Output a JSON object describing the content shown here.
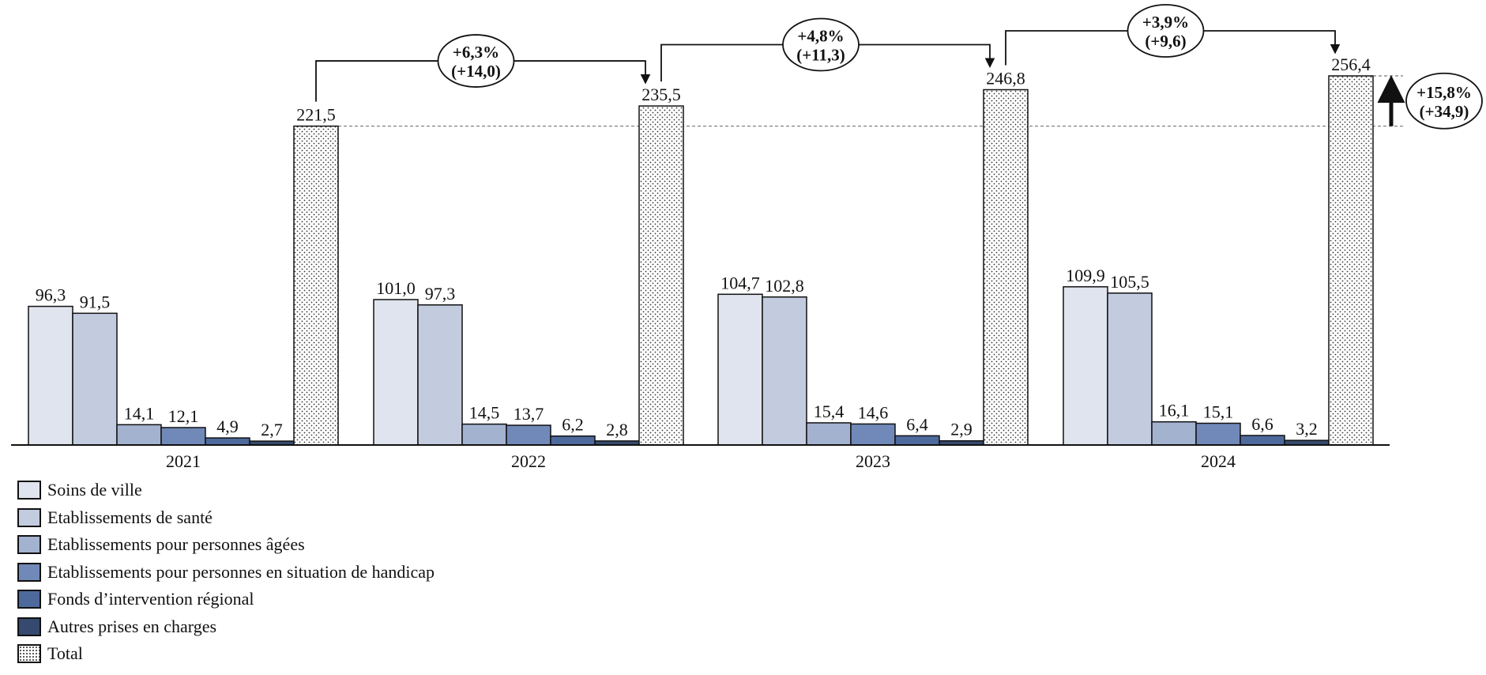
{
  "chart_data": {
    "type": "bar",
    "categories": [
      "2021",
      "2022",
      "2023",
      "2024"
    ],
    "series": [
      {
        "name": "Soins de ville",
        "color": "#dfe4ee",
        "values": [
          96.3,
          101.0,
          104.7,
          109.9
        ],
        "labels": [
          "96,3",
          "101,0",
          "104,7",
          "109,9"
        ]
      },
      {
        "name": "Etablissements de santé",
        "color": "#c3ccdf",
        "values": [
          91.5,
          97.3,
          102.8,
          105.5
        ],
        "labels": [
          "91,5",
          "97,3",
          "102,8",
          "105,5"
        ]
      },
      {
        "name": "Etablissements pour personnes âgées",
        "color": "#a3b2cf",
        "values": [
          14.1,
          14.5,
          15.4,
          16.1
        ],
        "labels": [
          "14,1",
          "14,5",
          "15,4",
          "16,1"
        ]
      },
      {
        "name": "Etablissements pour personnes en situation de handicap",
        "color": "#7089b8",
        "values": [
          12.1,
          13.7,
          14.6,
          15.1
        ],
        "labels": [
          "12,1",
          "13,7",
          "14,6",
          "15,1"
        ]
      },
      {
        "name": "Fonds d’intervention régional",
        "color": "#4e6a9c",
        "values": [
          4.9,
          6.2,
          6.4,
          6.6
        ],
        "labels": [
          "4,9",
          "6,2",
          "6,4",
          "6,6"
        ]
      },
      {
        "name": "Autres prises en charges",
        "color": "#354a6e",
        "values": [
          2.7,
          2.8,
          2.9,
          3.2
        ],
        "labels": [
          "2,7",
          "2,8",
          "2,9",
          "3,2"
        ]
      },
      {
        "name": "Total",
        "color": "#ffffff",
        "pattern": "dots",
        "values": [
          221.5,
          235.5,
          246.8,
          256.4
        ],
        "labels": [
          "221,5",
          "235,5",
          "246,8",
          "256,4"
        ]
      }
    ],
    "annotations": [
      {
        "from": "2021",
        "to": "2022",
        "line1": "+6,3%",
        "line2": "(+14,0)"
      },
      {
        "from": "2022",
        "to": "2023",
        "line1": "+4,8%",
        "line2": "(+11,3)"
      },
      {
        "from": "2023",
        "to": "2024",
        "line1": "+3,9%",
        "line2": "(+9,6)"
      }
    ],
    "overall_change": {
      "from": "2021",
      "to": "2024",
      "line1": "+15,8%",
      "line2": "(+34,9)"
    },
    "ylim": [
      0,
      256.4
    ],
    "legend_position": "bottom-left",
    "grid": false
  }
}
